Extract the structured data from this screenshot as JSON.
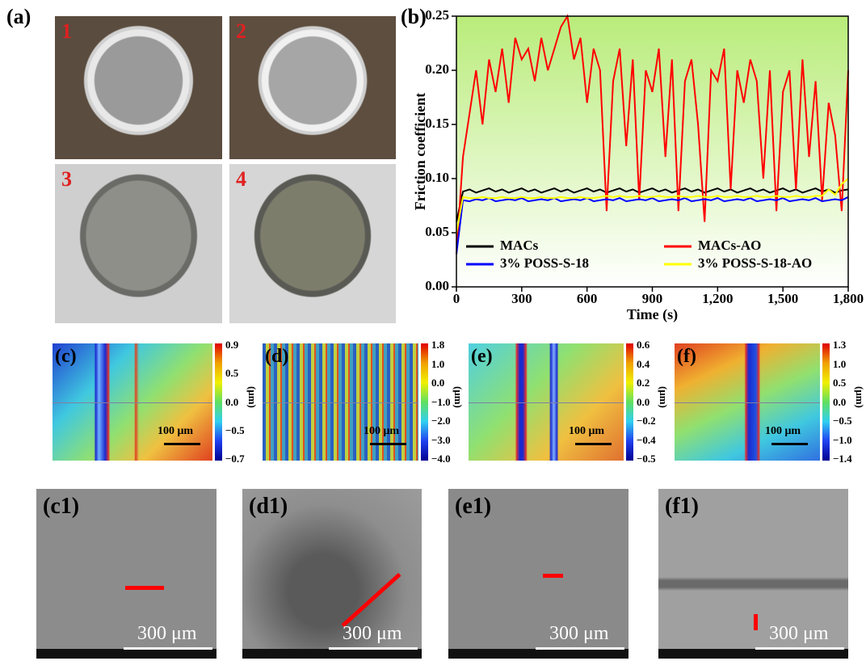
{
  "panel_labels": {
    "a": "(a)",
    "b": "(b)"
  },
  "photos": [
    {
      "label": "1"
    },
    {
      "label": "2"
    },
    {
      "label": "3"
    },
    {
      "label": "4"
    }
  ],
  "chart_data": {
    "type": "line",
    "xlabel": "Time (s)",
    "ylabel": "Friction coefficient",
    "x": [
      0,
      30,
      60,
      90,
      120,
      150,
      180,
      210,
      240,
      270,
      300,
      330,
      360,
      390,
      420,
      450,
      480,
      510,
      540,
      570,
      600,
      630,
      660,
      690,
      720,
      750,
      780,
      810,
      840,
      870,
      900,
      930,
      960,
      990,
      1020,
      1050,
      1080,
      1110,
      1140,
      1170,
      1200,
      1230,
      1260,
      1290,
      1320,
      1350,
      1380,
      1410,
      1440,
      1470,
      1500,
      1530,
      1560,
      1590,
      1620,
      1650,
      1680,
      1710,
      1740,
      1770,
      1800
    ],
    "series": [
      {
        "name": "MACs",
        "color": "#000000",
        "values": [
          0.06,
          0.088,
          0.09,
          0.087,
          0.089,
          0.091,
          0.088,
          0.09,
          0.087,
          0.089,
          0.091,
          0.088,
          0.09,
          0.087,
          0.089,
          0.091,
          0.088,
          0.09,
          0.087,
          0.089,
          0.091,
          0.088,
          0.09,
          0.087,
          0.089,
          0.091,
          0.088,
          0.09,
          0.087,
          0.089,
          0.091,
          0.088,
          0.09,
          0.087,
          0.089,
          0.091,
          0.088,
          0.09,
          0.087,
          0.089,
          0.091,
          0.088,
          0.09,
          0.087,
          0.089,
          0.091,
          0.088,
          0.09,
          0.087,
          0.089,
          0.091,
          0.088,
          0.09,
          0.087,
          0.089,
          0.091,
          0.088,
          0.09,
          0.087,
          0.089,
          0.09
        ]
      },
      {
        "name": "MACs-AO",
        "color": "#ff0000",
        "values": [
          0.03,
          0.12,
          0.16,
          0.2,
          0.15,
          0.21,
          0.18,
          0.22,
          0.17,
          0.23,
          0.21,
          0.22,
          0.19,
          0.23,
          0.2,
          0.22,
          0.24,
          0.25,
          0.21,
          0.23,
          0.17,
          0.22,
          0.2,
          0.07,
          0.19,
          0.22,
          0.13,
          0.21,
          0.08,
          0.2,
          0.18,
          0.22,
          0.12,
          0.21,
          0.07,
          0.19,
          0.21,
          0.15,
          0.06,
          0.2,
          0.19,
          0.22,
          0.09,
          0.2,
          0.17,
          0.21,
          0.19,
          0.1,
          0.2,
          0.07,
          0.18,
          0.2,
          0.09,
          0.21,
          0.12,
          0.19,
          0.08,
          0.17,
          0.14,
          0.07,
          0.2
        ]
      },
      {
        "name": "3% POSS-S-18",
        "color": "#0000ff",
        "values": [
          0.03,
          0.08,
          0.079,
          0.081,
          0.08,
          0.082,
          0.079,
          0.08,
          0.081,
          0.08,
          0.082,
          0.079,
          0.08,
          0.081,
          0.08,
          0.082,
          0.079,
          0.08,
          0.081,
          0.08,
          0.082,
          0.079,
          0.08,
          0.081,
          0.08,
          0.082,
          0.079,
          0.08,
          0.081,
          0.08,
          0.082,
          0.079,
          0.08,
          0.081,
          0.08,
          0.082,
          0.079,
          0.08,
          0.081,
          0.08,
          0.082,
          0.079,
          0.08,
          0.081,
          0.08,
          0.082,
          0.079,
          0.08,
          0.081,
          0.08,
          0.082,
          0.079,
          0.08,
          0.081,
          0.08,
          0.082,
          0.079,
          0.08,
          0.081,
          0.08,
          0.083
        ]
      },
      {
        "name": "3% POSS-S-18-AO",
        "color": "#ffff00",
        "values": [
          0.05,
          0.083,
          0.082,
          0.082,
          0.083,
          0.082,
          0.082,
          0.083,
          0.082,
          0.082,
          0.083,
          0.082,
          0.082,
          0.083,
          0.082,
          0.082,
          0.083,
          0.082,
          0.082,
          0.083,
          0.082,
          0.082,
          0.083,
          0.084,
          0.083,
          0.084,
          0.083,
          0.083,
          0.084,
          0.083,
          0.083,
          0.084,
          0.083,
          0.083,
          0.084,
          0.083,
          0.083,
          0.084,
          0.083,
          0.083,
          0.084,
          0.083,
          0.083,
          0.084,
          0.083,
          0.083,
          0.084,
          0.083,
          0.083,
          0.084,
          0.083,
          0.083,
          0.084,
          0.083,
          0.083,
          0.084,
          0.084,
          0.09,
          0.085,
          0.095,
          0.1
        ]
      }
    ],
    "xlim": [
      0,
      1800
    ],
    "ylim": [
      0,
      0.25
    ],
    "xticks": [
      0,
      300,
      600,
      900,
      {
        "value": 1200,
        "label": "1,200"
      },
      {
        "value": 1500,
        "label": "1,500"
      },
      {
        "value": 1800,
        "label": "1,800"
      }
    ],
    "yticks": [
      {
        "value": 0,
        "label": "0.00"
      },
      0.05,
      {
        "value": 0.1,
        "label": "0.10"
      },
      0.15,
      {
        "value": 0.2,
        "label": "0.20"
      },
      0.25
    ],
    "legend": "bottom",
    "grid": false
  },
  "profiles": [
    {
      "label": "(c)",
      "unit": "(μm)",
      "scale_bar": "100 μm",
      "colorbar_ticks": [
        "0.9",
        "0.5",
        "0.0",
        "−0.5",
        "−0.7"
      ]
    },
    {
      "label": "(d)",
      "unit": "(μm)",
      "scale_bar": "100 μm",
      "colorbar_ticks": [
        "1.8",
        "1.0",
        "0.0",
        "−1.0",
        "−2.0",
        "−3.0",
        "−4.0"
      ]
    },
    {
      "label": "(e)",
      "unit": "(μm)",
      "scale_bar": "100 μm",
      "colorbar_ticks": [
        "0.6",
        "0.4",
        "0.2",
        "0.0",
        "−0.2",
        "−0.4",
        "−0.5"
      ]
    },
    {
      "label": "(f)",
      "unit": "(μm)",
      "scale_bar": "100 μm",
      "colorbar_ticks": [
        "1.3",
        "1.0",
        "0.5",
        "0.0",
        "−0.5",
        "−1.0",
        "−1.4"
      ]
    }
  ],
  "sem": [
    {
      "label": "(c1)",
      "scale_bar": "300 μm"
    },
    {
      "label": "(d1)",
      "scale_bar": "300 μm"
    },
    {
      "label": "(e1)",
      "scale_bar": "300 μm"
    },
    {
      "label": "(f1)",
      "scale_bar": "300 μm"
    }
  ]
}
